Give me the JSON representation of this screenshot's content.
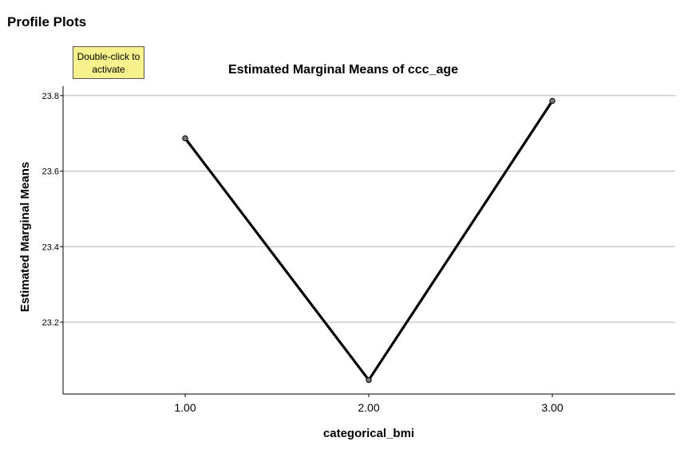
{
  "page": {
    "heading": "Profile Plots",
    "activate_note": "Double-click to activate"
  },
  "chart_data": {
    "type": "line",
    "title": "Estimated Marginal Means of ccc_age",
    "xlabel": "categorical_bmi",
    "ylabel": "Estimated Marginal Means",
    "categories": [
      "1.00",
      "2.00",
      "3.00"
    ],
    "series": [
      {
        "values": [
          23.687,
          23.047,
          23.786
        ]
      }
    ],
    "yticks": [
      "23.2",
      "23.4",
      "23.6",
      "23.8"
    ],
    "ylim": [
      23.01,
      23.825
    ],
    "grid": true,
    "line_color": "#000000",
    "marker_color": "#777777"
  }
}
